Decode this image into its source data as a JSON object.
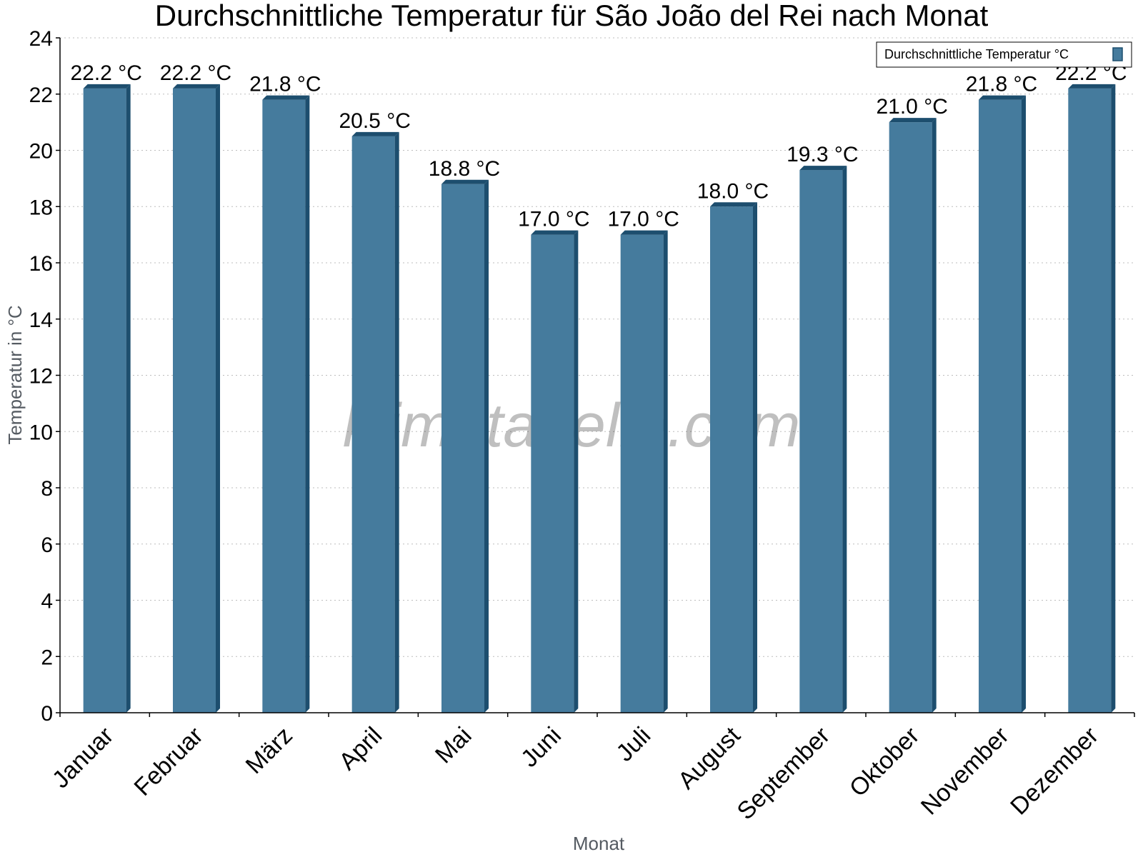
{
  "chart_data": {
    "type": "bar",
    "title": "Durchschnittliche Temperatur für São João del Rei nach Monat",
    "xlabel": "Monat",
    "ylabel": "Temperatur in °C",
    "categories": [
      "Januar",
      "Februar",
      "März",
      "April",
      "Mai",
      "Juni",
      "Juli",
      "August",
      "September",
      "Oktober",
      "November",
      "Dezember"
    ],
    "series": [
      {
        "name": "Durchschnittliche Temperatur °C",
        "values": [
          22.2,
          22.2,
          21.8,
          20.5,
          18.8,
          17.0,
          17.0,
          18.0,
          19.3,
          21.0,
          21.8,
          22.2
        ],
        "data_labels": [
          "22.2 °C",
          "22.2 °C",
          "21.8 °C",
          "20.5 °C",
          "18.8 °C",
          "17.0 °C",
          "17.0 °C",
          "18.0 °C",
          "19.3 °C",
          "21.0 °C",
          "21.8 °C",
          "22.2 °C"
        ],
        "color": "#457b9d",
        "edge_color": "#1d4e6e"
      }
    ],
    "ylim": [
      0,
      24
    ],
    "yticks": [
      0,
      2,
      4,
      6,
      8,
      10,
      12,
      14,
      16,
      18,
      20,
      22,
      24
    ],
    "grid": true,
    "legend": "top-right"
  },
  "watermark": "klimatabelle.com"
}
